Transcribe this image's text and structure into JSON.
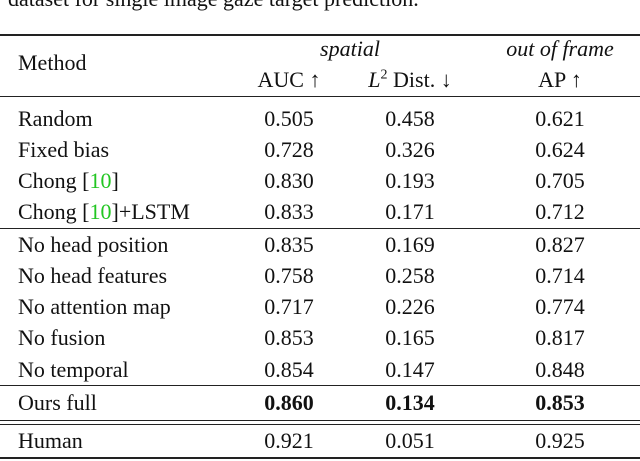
{
  "caption_fragment": "dataset for single image gaze target prediction.",
  "header": {
    "method": "Method",
    "group_spatial": "spatial",
    "group_out_of_frame": "out of frame",
    "auc": "AUC ↑",
    "l2_var": "L",
    "l2_sup": "2",
    "l2_rest": " Dist. ↓",
    "ap": "AP ↑"
  },
  "groups": [
    [
      {
        "method": "Random",
        "auc": "0.505",
        "l2": "0.458",
        "ap": "0.621"
      },
      {
        "method": "Fixed bias",
        "auc": "0.728",
        "l2": "0.326",
        "ap": "0.624"
      },
      {
        "method_pre": "Chong [",
        "cite": "10",
        "method_post": "]",
        "auc": "0.830",
        "l2": "0.193",
        "ap": "0.705"
      },
      {
        "method_pre": "Chong [",
        "cite": "10",
        "method_post": "]+LSTM",
        "auc": "0.833",
        "l2": "0.171",
        "ap": "0.712"
      }
    ],
    [
      {
        "method": "No head position",
        "auc": "0.835",
        "l2": "0.169",
        "ap": "0.827"
      },
      {
        "method": "No head features",
        "auc": "0.758",
        "l2": "0.258",
        "ap": "0.714"
      },
      {
        "method": "No attention map",
        "auc": "0.717",
        "l2": "0.226",
        "ap": "0.774"
      },
      {
        "method": "No fusion",
        "auc": "0.853",
        "l2": "0.165",
        "ap": "0.817"
      },
      {
        "method": "No temporal",
        "auc": "0.854",
        "l2": "0.147",
        "ap": "0.848"
      }
    ],
    [
      {
        "method": "Ours full",
        "auc": "0.860",
        "l2": "0.134",
        "ap": "0.853",
        "bold": true
      }
    ],
    [
      {
        "method": "Human",
        "auc": "0.921",
        "l2": "0.051",
        "ap": "0.925"
      }
    ]
  ],
  "colors": {
    "citation": "#22c622",
    "text": "#111111"
  }
}
